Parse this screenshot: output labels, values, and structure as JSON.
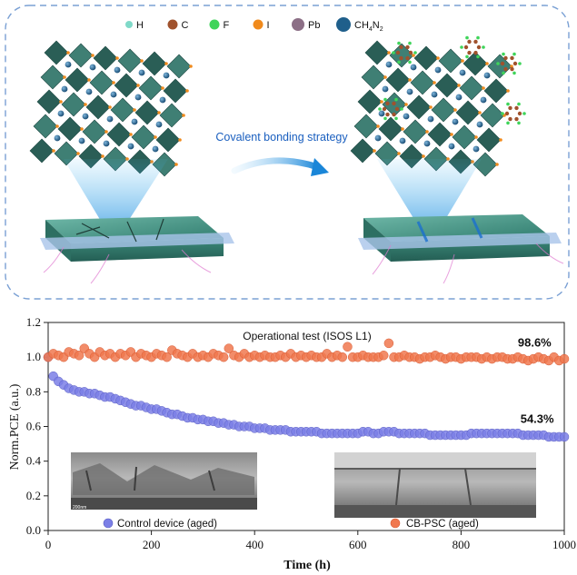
{
  "schematic": {
    "legend": [
      {
        "symbol": "H",
        "color": "#7fd9c8"
      },
      {
        "symbol": "C",
        "color": "#a0522d"
      },
      {
        "symbol": "F",
        "color": "#3fd45a"
      },
      {
        "symbol": "I",
        "color": "#f08a1c"
      },
      {
        "symbol": "Pb",
        "color": "#8c6f86"
      },
      {
        "symbol": "CH4N2",
        "color": "#1f5f8b"
      }
    ],
    "strategy_label": "Covalent bonding strategy",
    "colors": {
      "octahedron": "#3f7f74",
      "octahedron_dark": "#2a5e56",
      "accent": "#2e9be0",
      "crack": "#e07ad0"
    }
  },
  "chart_data": {
    "type": "scatter",
    "title": "Operational test (ISOS L1)",
    "xlabel": "Time (h)",
    "ylabel": "Norm.PCE (a.u.)",
    "xlim": [
      0,
      1000
    ],
    "ylim": [
      0.0,
      1.2
    ],
    "xticks": [
      "0",
      "200",
      "400",
      "600",
      "800",
      "1000"
    ],
    "yticks": [
      "0.0",
      "0.2",
      "0.4",
      "0.6",
      "0.8",
      "1.0",
      "1.2"
    ],
    "grid": false,
    "legend_position": "bottom",
    "series": [
      {
        "name": "Control device (aged)",
        "color": "#7b7fe6",
        "final_label": "54.3%",
        "x": [
          0,
          10,
          20,
          30,
          40,
          50,
          60,
          70,
          80,
          90,
          100,
          110,
          120,
          130,
          140,
          150,
          160,
          170,
          180,
          190,
          200,
          210,
          220,
          230,
          240,
          250,
          260,
          270,
          280,
          290,
          300,
          310,
          320,
          330,
          340,
          350,
          360,
          370,
          380,
          390,
          400,
          410,
          420,
          430,
          440,
          450,
          460,
          470,
          480,
          490,
          500,
          510,
          520,
          530,
          540,
          550,
          560,
          570,
          580,
          590,
          600,
          610,
          620,
          630,
          640,
          650,
          660,
          670,
          680,
          690,
          700,
          710,
          720,
          730,
          740,
          750,
          760,
          770,
          780,
          790,
          800,
          810,
          820,
          830,
          840,
          850,
          860,
          870,
          880,
          890,
          900,
          910,
          920,
          930,
          940,
          950,
          960,
          970,
          980,
          990,
          1000
        ],
        "y": [
          1.0,
          0.89,
          0.86,
          0.84,
          0.82,
          0.81,
          0.8,
          0.8,
          0.79,
          0.79,
          0.78,
          0.77,
          0.77,
          0.76,
          0.75,
          0.74,
          0.73,
          0.72,
          0.72,
          0.71,
          0.7,
          0.7,
          0.69,
          0.68,
          0.67,
          0.67,
          0.66,
          0.65,
          0.65,
          0.64,
          0.64,
          0.63,
          0.63,
          0.62,
          0.62,
          0.61,
          0.61,
          0.6,
          0.6,
          0.6,
          0.59,
          0.59,
          0.59,
          0.58,
          0.58,
          0.58,
          0.58,
          0.57,
          0.57,
          0.57,
          0.57,
          0.57,
          0.57,
          0.56,
          0.56,
          0.56,
          0.56,
          0.56,
          0.56,
          0.56,
          0.56,
          0.57,
          0.57,
          0.56,
          0.56,
          0.57,
          0.57,
          0.57,
          0.56,
          0.56,
          0.56,
          0.56,
          0.56,
          0.56,
          0.55,
          0.55,
          0.55,
          0.55,
          0.55,
          0.55,
          0.55,
          0.55,
          0.56,
          0.56,
          0.56,
          0.56,
          0.56,
          0.56,
          0.56,
          0.56,
          0.56,
          0.56,
          0.55,
          0.55,
          0.55,
          0.55,
          0.55,
          0.54,
          0.54,
          0.54,
          0.54
        ]
      },
      {
        "name": "CB-PSC (aged)",
        "color": "#f0784f",
        "final_label": "98.6%",
        "x": [
          0,
          10,
          20,
          30,
          40,
          50,
          60,
          70,
          80,
          90,
          100,
          110,
          120,
          130,
          140,
          150,
          160,
          170,
          180,
          190,
          200,
          210,
          220,
          230,
          240,
          250,
          260,
          270,
          280,
          290,
          300,
          310,
          320,
          330,
          340,
          350,
          360,
          370,
          380,
          390,
          400,
          410,
          420,
          430,
          440,
          450,
          460,
          470,
          480,
          490,
          500,
          510,
          520,
          530,
          540,
          550,
          560,
          570,
          580,
          590,
          600,
          610,
          620,
          630,
          640,
          650,
          660,
          670,
          680,
          690,
          700,
          710,
          720,
          730,
          740,
          750,
          760,
          770,
          780,
          790,
          800,
          810,
          820,
          830,
          840,
          850,
          860,
          870,
          880,
          890,
          900,
          910,
          920,
          930,
          940,
          950,
          960,
          970,
          980,
          990,
          1000
        ],
        "y": [
          1.0,
          1.02,
          1.01,
          1.0,
          1.03,
          1.02,
          1.01,
          1.05,
          1.02,
          1.0,
          1.03,
          1.01,
          1.02,
          1.0,
          1.02,
          1.01,
          1.03,
          1.0,
          1.02,
          1.01,
          1.0,
          1.02,
          1.01,
          1.0,
          1.04,
          1.02,
          1.01,
          1.0,
          1.02,
          1.0,
          1.01,
          1.0,
          1.02,
          1.01,
          1.0,
          1.05,
          1.01,
          1.0,
          1.02,
          1.0,
          1.01,
          1.0,
          1.01,
          1.0,
          1.0,
          1.01,
          1.0,
          1.02,
          1.0,
          1.01,
          1.0,
          1.01,
          1.0,
          1.0,
          1.02,
          1.0,
          1.01,
          1.0,
          1.06,
          1.0,
          1.0,
          1.01,
          1.0,
          1.0,
          1.0,
          1.01,
          1.08,
          1.0,
          1.0,
          1.01,
          1.0,
          1.0,
          0.99,
          1.0,
          1.0,
          1.01,
          1.0,
          0.99,
          1.0,
          1.0,
          0.99,
          1.0,
          1.0,
          1.0,
          0.99,
          1.0,
          0.99,
          1.0,
          1.0,
          0.99,
          0.99,
          1.0,
          0.99,
          0.98,
          0.99,
          1.0,
          0.99,
          0.98,
          1.0,
          0.98,
          0.99
        ]
      }
    ],
    "annotations": [
      {
        "text": "98.6%",
        "x": 910,
        "y": 1.06
      },
      {
        "text": "54.3%",
        "x": 915,
        "y": 0.62
      }
    ],
    "insets": [
      {
        "name": "control-sem-inset",
        "scale_label": "200nm"
      },
      {
        "name": "cbpsc-sem-inset"
      }
    ]
  }
}
